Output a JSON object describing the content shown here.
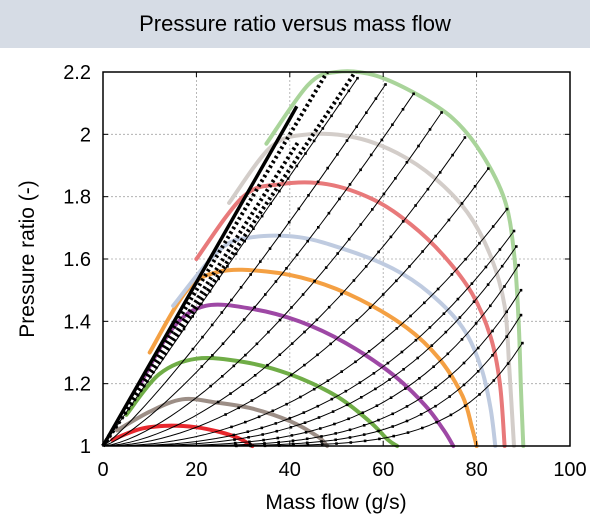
{
  "title": "Pressure ratio versus mass flow",
  "chart_data": {
    "type": "line",
    "title": "Pressure ratio versus mass flow",
    "xlabel": "Mass flow (g/s)",
    "ylabel": "Pressure ratio (-)",
    "xlim": [
      0,
      100
    ],
    "ylim": [
      1,
      2.2
    ],
    "xticks": [
      0,
      20,
      40,
      60,
      80,
      100
    ],
    "yticks": [
      1,
      1.2,
      1.4,
      1.6,
      1.8,
      2,
      2.2
    ],
    "grid": true,
    "speed_lines": [
      {
        "color": "#e8272d",
        "points": [
          [
            2,
            1.02
          ],
          [
            8,
            1.055
          ],
          [
            14,
            1.065
          ],
          [
            20,
            1.06
          ],
          [
            25,
            1.045
          ],
          [
            29,
            1.025
          ],
          [
            32,
            1.0
          ]
        ]
      },
      {
        "color": "#9c8e86",
        "points": [
          [
            3,
            1.05
          ],
          [
            10,
            1.11
          ],
          [
            17,
            1.15
          ],
          [
            24,
            1.14
          ],
          [
            32,
            1.12
          ],
          [
            40,
            1.08
          ],
          [
            46,
            1.03
          ],
          [
            48,
            1.0
          ]
        ]
      },
      {
        "color": "#70ad47",
        "points": [
          [
            5,
            1.1
          ],
          [
            12,
            1.23
          ],
          [
            20,
            1.28
          ],
          [
            30,
            1.27
          ],
          [
            40,
            1.23
          ],
          [
            50,
            1.16
          ],
          [
            57,
            1.08
          ],
          [
            61,
            1.02
          ],
          [
            63,
            1.0
          ]
        ]
      },
      {
        "color": "#9e48a5",
        "points": [
          [
            8,
            1.2
          ],
          [
            15,
            1.38
          ],
          [
            22,
            1.45
          ],
          [
            32,
            1.44
          ],
          [
            42,
            1.4
          ],
          [
            52,
            1.33
          ],
          [
            62,
            1.23
          ],
          [
            69,
            1.13
          ],
          [
            73,
            1.05
          ],
          [
            75,
            1.0
          ]
        ]
      },
      {
        "color": "#f4a043",
        "points": [
          [
            10,
            1.3
          ],
          [
            18,
            1.5
          ],
          [
            25,
            1.56
          ],
          [
            35,
            1.56
          ],
          [
            45,
            1.53
          ],
          [
            55,
            1.47
          ],
          [
            65,
            1.38
          ],
          [
            72,
            1.28
          ],
          [
            77,
            1.16
          ],
          [
            79,
            1.06
          ],
          [
            80,
            1.0
          ]
        ]
      },
      {
        "color": "#bfcbe0",
        "points": [
          [
            15,
            1.45
          ],
          [
            25,
            1.63
          ],
          [
            32,
            1.67
          ],
          [
            42,
            1.67
          ],
          [
            52,
            1.63
          ],
          [
            62,
            1.57
          ],
          [
            70,
            1.49
          ],
          [
            77,
            1.38
          ],
          [
            81,
            1.25
          ],
          [
            83,
            1.12
          ],
          [
            84,
            1.0
          ]
        ]
      },
      {
        "color": "#e8797a",
        "points": [
          [
            20,
            1.6
          ],
          [
            30,
            1.8
          ],
          [
            38,
            1.84
          ],
          [
            48,
            1.84
          ],
          [
            58,
            1.79
          ],
          [
            66,
            1.71
          ],
          [
            73,
            1.61
          ],
          [
            79,
            1.49
          ],
          [
            83,
            1.35
          ],
          [
            85,
            1.2
          ],
          [
            86,
            1.0
          ]
        ]
      },
      {
        "color": "#d3cdc9",
        "points": [
          [
            27,
            1.78
          ],
          [
            36,
            1.96
          ],
          [
            44,
            2.0
          ],
          [
            54,
            1.99
          ],
          [
            63,
            1.94
          ],
          [
            71,
            1.86
          ],
          [
            78,
            1.75
          ],
          [
            83,
            1.61
          ],
          [
            86,
            1.45
          ],
          [
            87,
            1.25
          ],
          [
            88,
            1.0
          ]
        ]
      },
      {
        "color": "#a9d49a",
        "points": [
          [
            35,
            1.97
          ],
          [
            44,
            2.16
          ],
          [
            50,
            2.2
          ],
          [
            58,
            2.19
          ],
          [
            67,
            2.13
          ],
          [
            75,
            2.05
          ],
          [
            81,
            1.94
          ],
          [
            86,
            1.79
          ],
          [
            88,
            1.62
          ],
          [
            89,
            1.4
          ],
          [
            89.5,
            1.18
          ],
          [
            90,
            1.0
          ]
        ]
      }
    ],
    "surge_lines": [
      {
        "style": "solid",
        "points": [
          [
            0,
            1.0
          ],
          [
            40,
            2.05
          ],
          [
            41.5,
            2.09
          ]
        ]
      },
      {
        "style": "dotted",
        "points": [
          [
            0,
            1.0
          ],
          [
            48,
            2.2
          ]
        ]
      },
      {
        "style": "dotted",
        "points": [
          [
            0,
            1.0
          ],
          [
            42,
            1.98
          ]
        ]
      },
      {
        "style": "dotted",
        "points": [
          [
            0,
            1.0
          ],
          [
            54,
            2.2
          ]
        ]
      }
    ],
    "operating_lines_exponents": [
      1.0,
      1.15,
      1.3,
      1.5,
      1.7,
      1.9,
      2.2,
      2.6,
      3.0,
      3.6,
      4.3,
      5.2,
      6.4
    ],
    "operating_lines_ends": [
      [
        54.5,
        2.18
      ],
      [
        60.5,
        2.16
      ],
      [
        66.5,
        2.13
      ],
      [
        72.5,
        2.07
      ],
      [
        77.5,
        1.99
      ],
      [
        82.5,
        1.89
      ],
      [
        86.5,
        1.76
      ],
      [
        88,
        1.69
      ],
      [
        88.5,
        1.64
      ],
      [
        89,
        1.58
      ],
      [
        89.5,
        1.5
      ],
      [
        89.5,
        1.42
      ],
      [
        89.8,
        1.33
      ]
    ]
  }
}
